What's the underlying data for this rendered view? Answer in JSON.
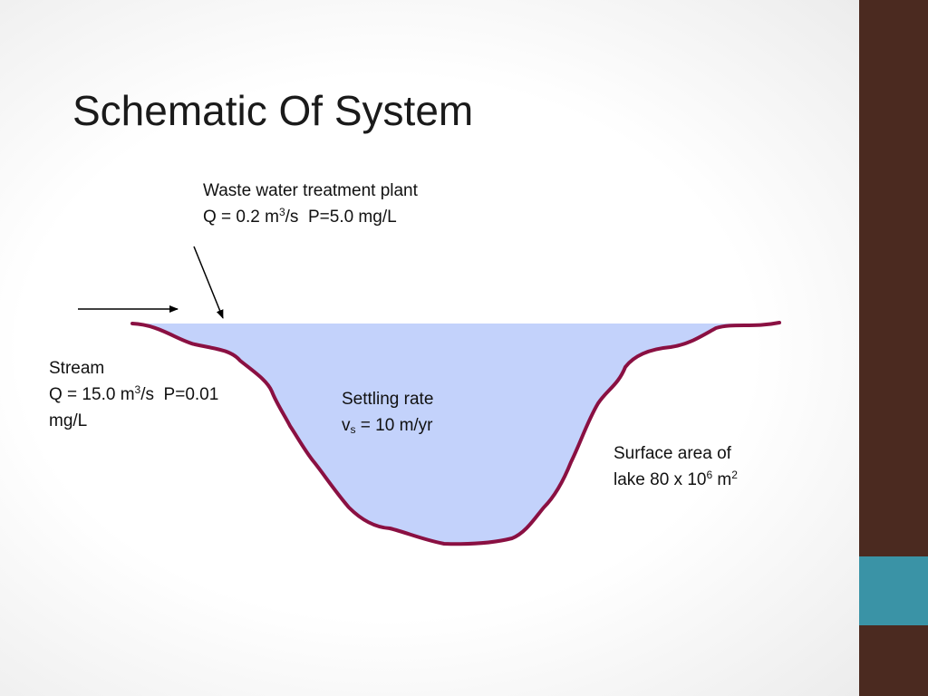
{
  "slide": {
    "title": "Schematic Of System"
  },
  "colors": {
    "side_bar": "#4b2a20",
    "side_accent": "#3a93a6",
    "water": "#c3d2fb",
    "lake_outline": "#8a1042",
    "arrow": "#000000"
  },
  "wwtp": {
    "name": "Waste water treatment plant",
    "q_prefix": "Q = 0.2 m",
    "q_sup": "3",
    "q_suffix": "/s  P=5.0 mg/L"
  },
  "stream": {
    "name": "Stream",
    "q_prefix": "Q = 15.0 m",
    "q_sup": "3",
    "q_suffix": "/s  P=0.01",
    "units_line": "mg/L"
  },
  "settling": {
    "name": "Settling rate",
    "v_symbol": "v",
    "v_sub": "s",
    "v_value": " = 10 m/yr"
  },
  "surface_area": {
    "line1": "Surface area of",
    "line2_prefix": "lake 80 x 10",
    "line2_sup1": "6",
    "line2_mid": " m",
    "line2_sup2": "2"
  }
}
